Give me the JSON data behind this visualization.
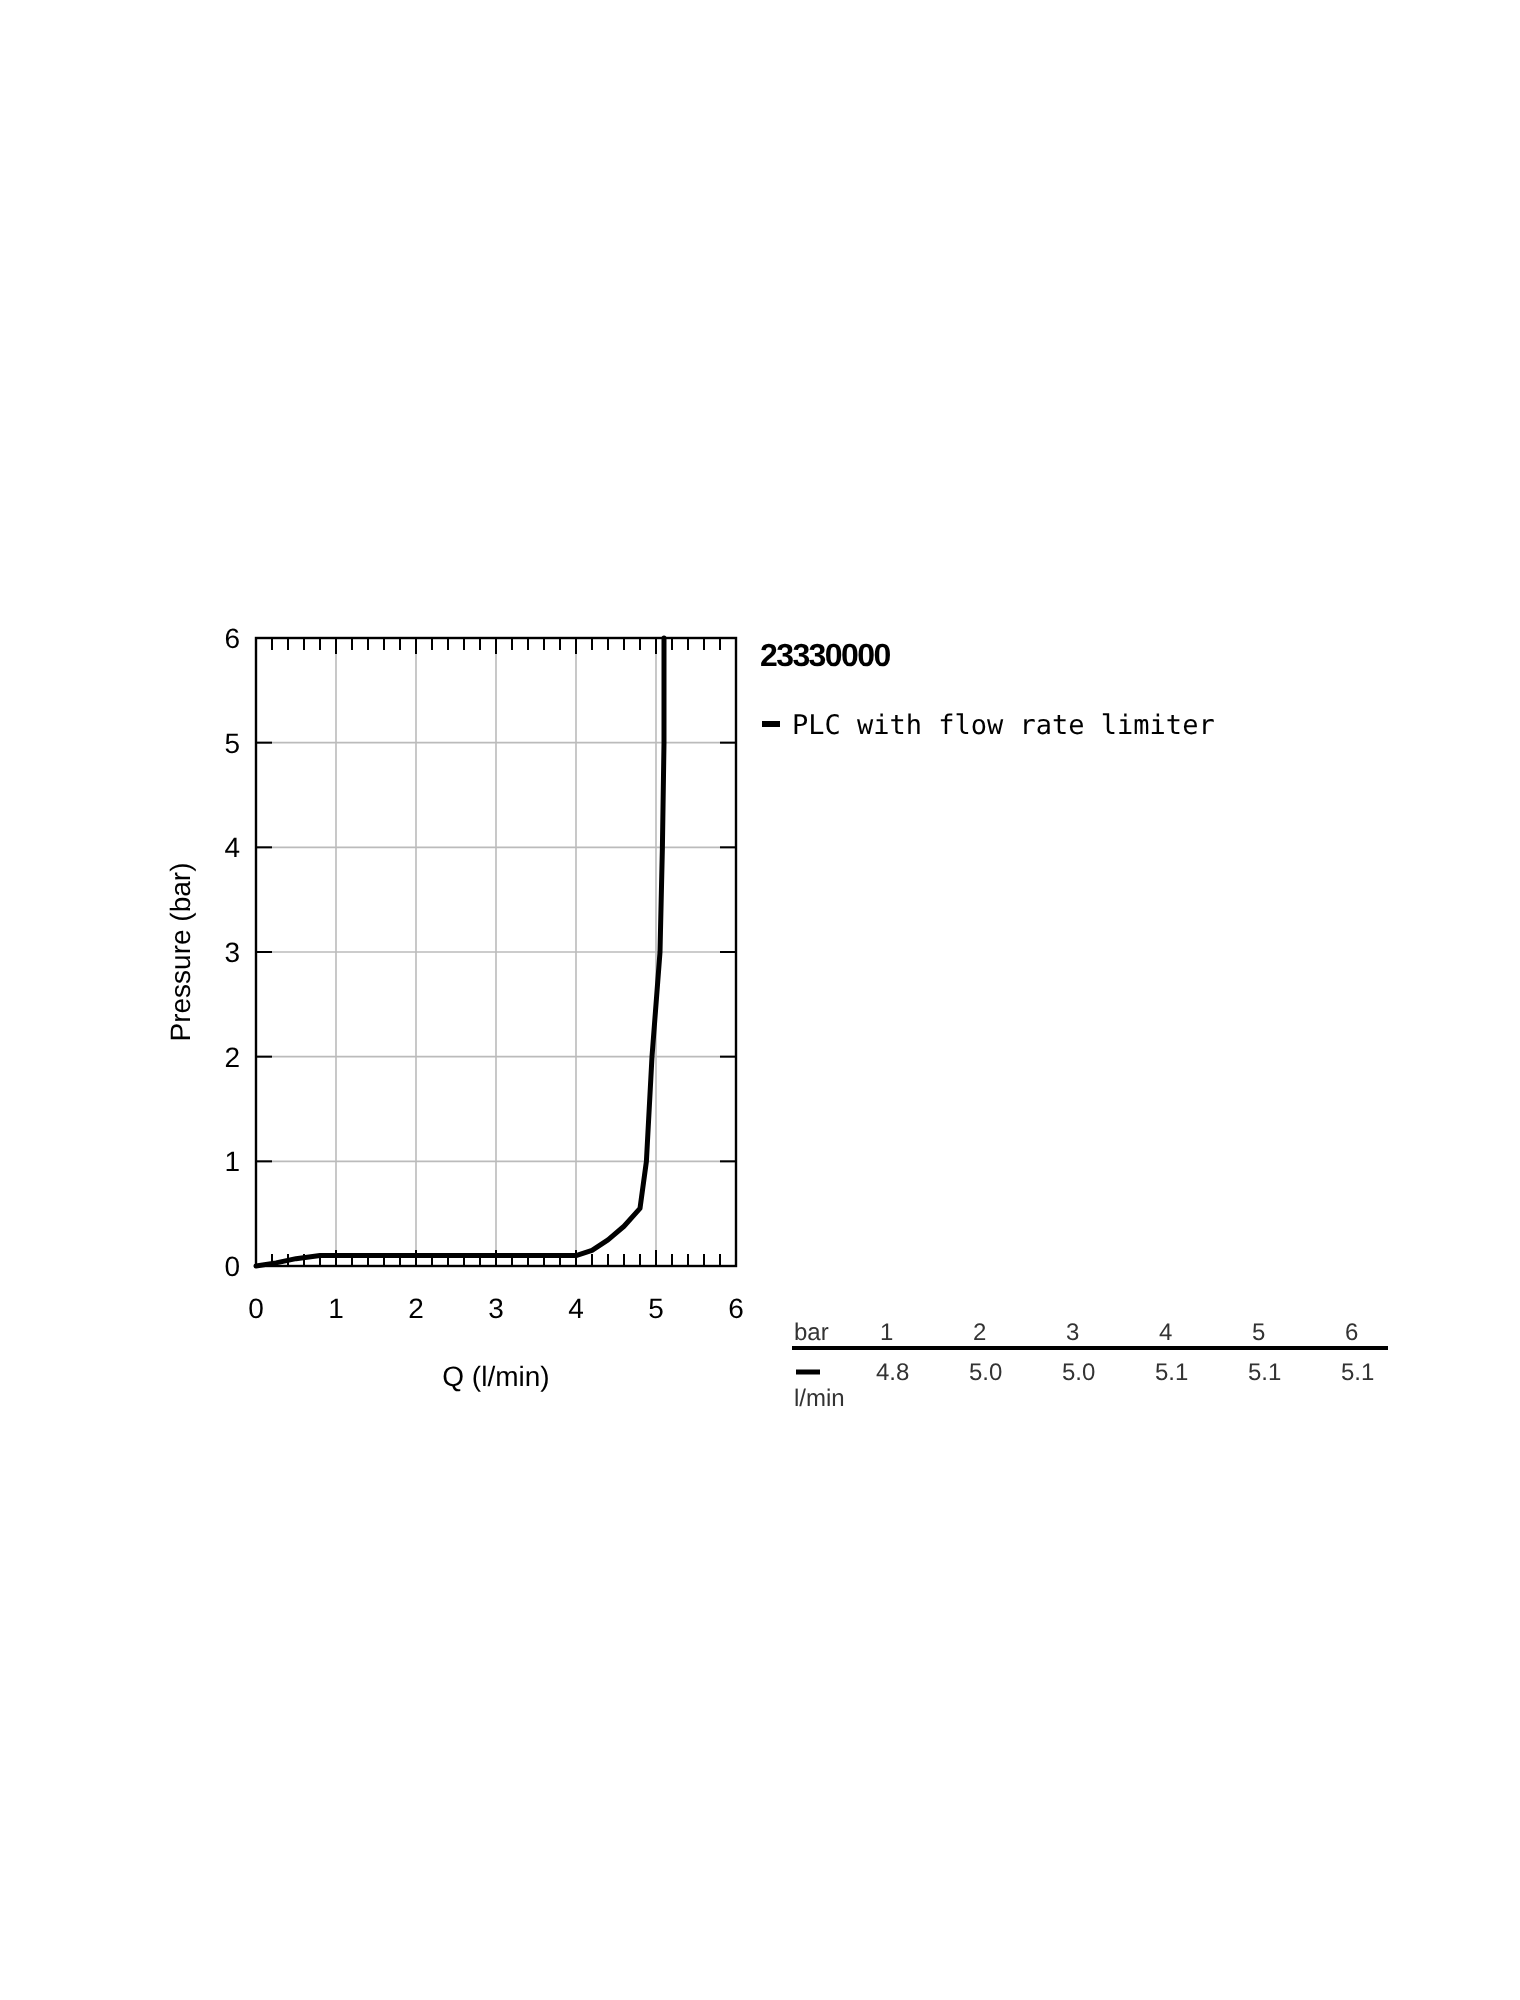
{
  "chart_data": {
    "type": "line",
    "title": "23330000",
    "xlabel": "Q (l/min)",
    "ylabel": "Pressure (bar)",
    "xlim": [
      0,
      6
    ],
    "ylim": [
      0,
      6
    ],
    "xticks": [
      0,
      {
        "value": 0.2,
        "label": null
      },
      {
        "value": 0.4,
        "label": null
      },
      {
        "value": 0.6,
        "label": null
      },
      {
        "value": 0.8,
        "label": null
      },
      1,
      {
        "value": 1.2,
        "label": null
      },
      {
        "value": 1.4,
        "label": null
      },
      {
        "value": 1.6,
        "label": null
      },
      {
        "value": 1.8,
        "label": null
      },
      2,
      {
        "value": 2.2,
        "label": null
      },
      {
        "value": 2.4,
        "label": null
      },
      {
        "value": 2.6,
        "label": null
      },
      {
        "value": 2.8,
        "label": null
      },
      3,
      {
        "value": 3.2,
        "label": null
      },
      {
        "value": 3.4,
        "label": null
      },
      {
        "value": 3.6,
        "label": null
      },
      {
        "value": 3.8,
        "label": null
      },
      4,
      {
        "value": 4.2,
        "label": null
      },
      {
        "value": 4.4,
        "label": null
      },
      {
        "value": 4.6,
        "label": null
      },
      {
        "value": 4.8,
        "label": null
      },
      5,
      {
        "value": 5.2,
        "label": null
      },
      {
        "value": 5.4,
        "label": null
      },
      {
        "value": 5.6,
        "label": null
      },
      {
        "value": 5.8,
        "label": null
      },
      6
    ],
    "yticks": [
      0,
      1,
      2,
      3,
      4,
      5,
      6
    ],
    "grid": true,
    "legend": "right",
    "annotations": [
      "bar",
      "1",
      "2",
      "3",
      "4",
      "5",
      "6",
      "l/min",
      "4.8",
      "5.0",
      "5.0",
      "5.1",
      "5.1",
      "5.1"
    ],
    "series": [
      {
        "name": "PLC with flow rate limiter",
        "color": "#000000",
        "x": [
          0,
          0.25,
          0.5,
          0.8,
          1,
          2,
          3,
          4,
          4.2,
          4.4,
          4.6,
          4.8,
          4.88,
          4.95,
          5.0,
          5.05,
          5.08,
          5.1,
          5.1
        ],
        "values": [
          0,
          0.03,
          0.07,
          0.1,
          0.1,
          0.1,
          0.1,
          0.1,
          0.15,
          0.25,
          0.38,
          0.55,
          1.0,
          2.0,
          2.5,
          3.0,
          4.0,
          5.0,
          6.0
        ]
      }
    ]
  }
}
